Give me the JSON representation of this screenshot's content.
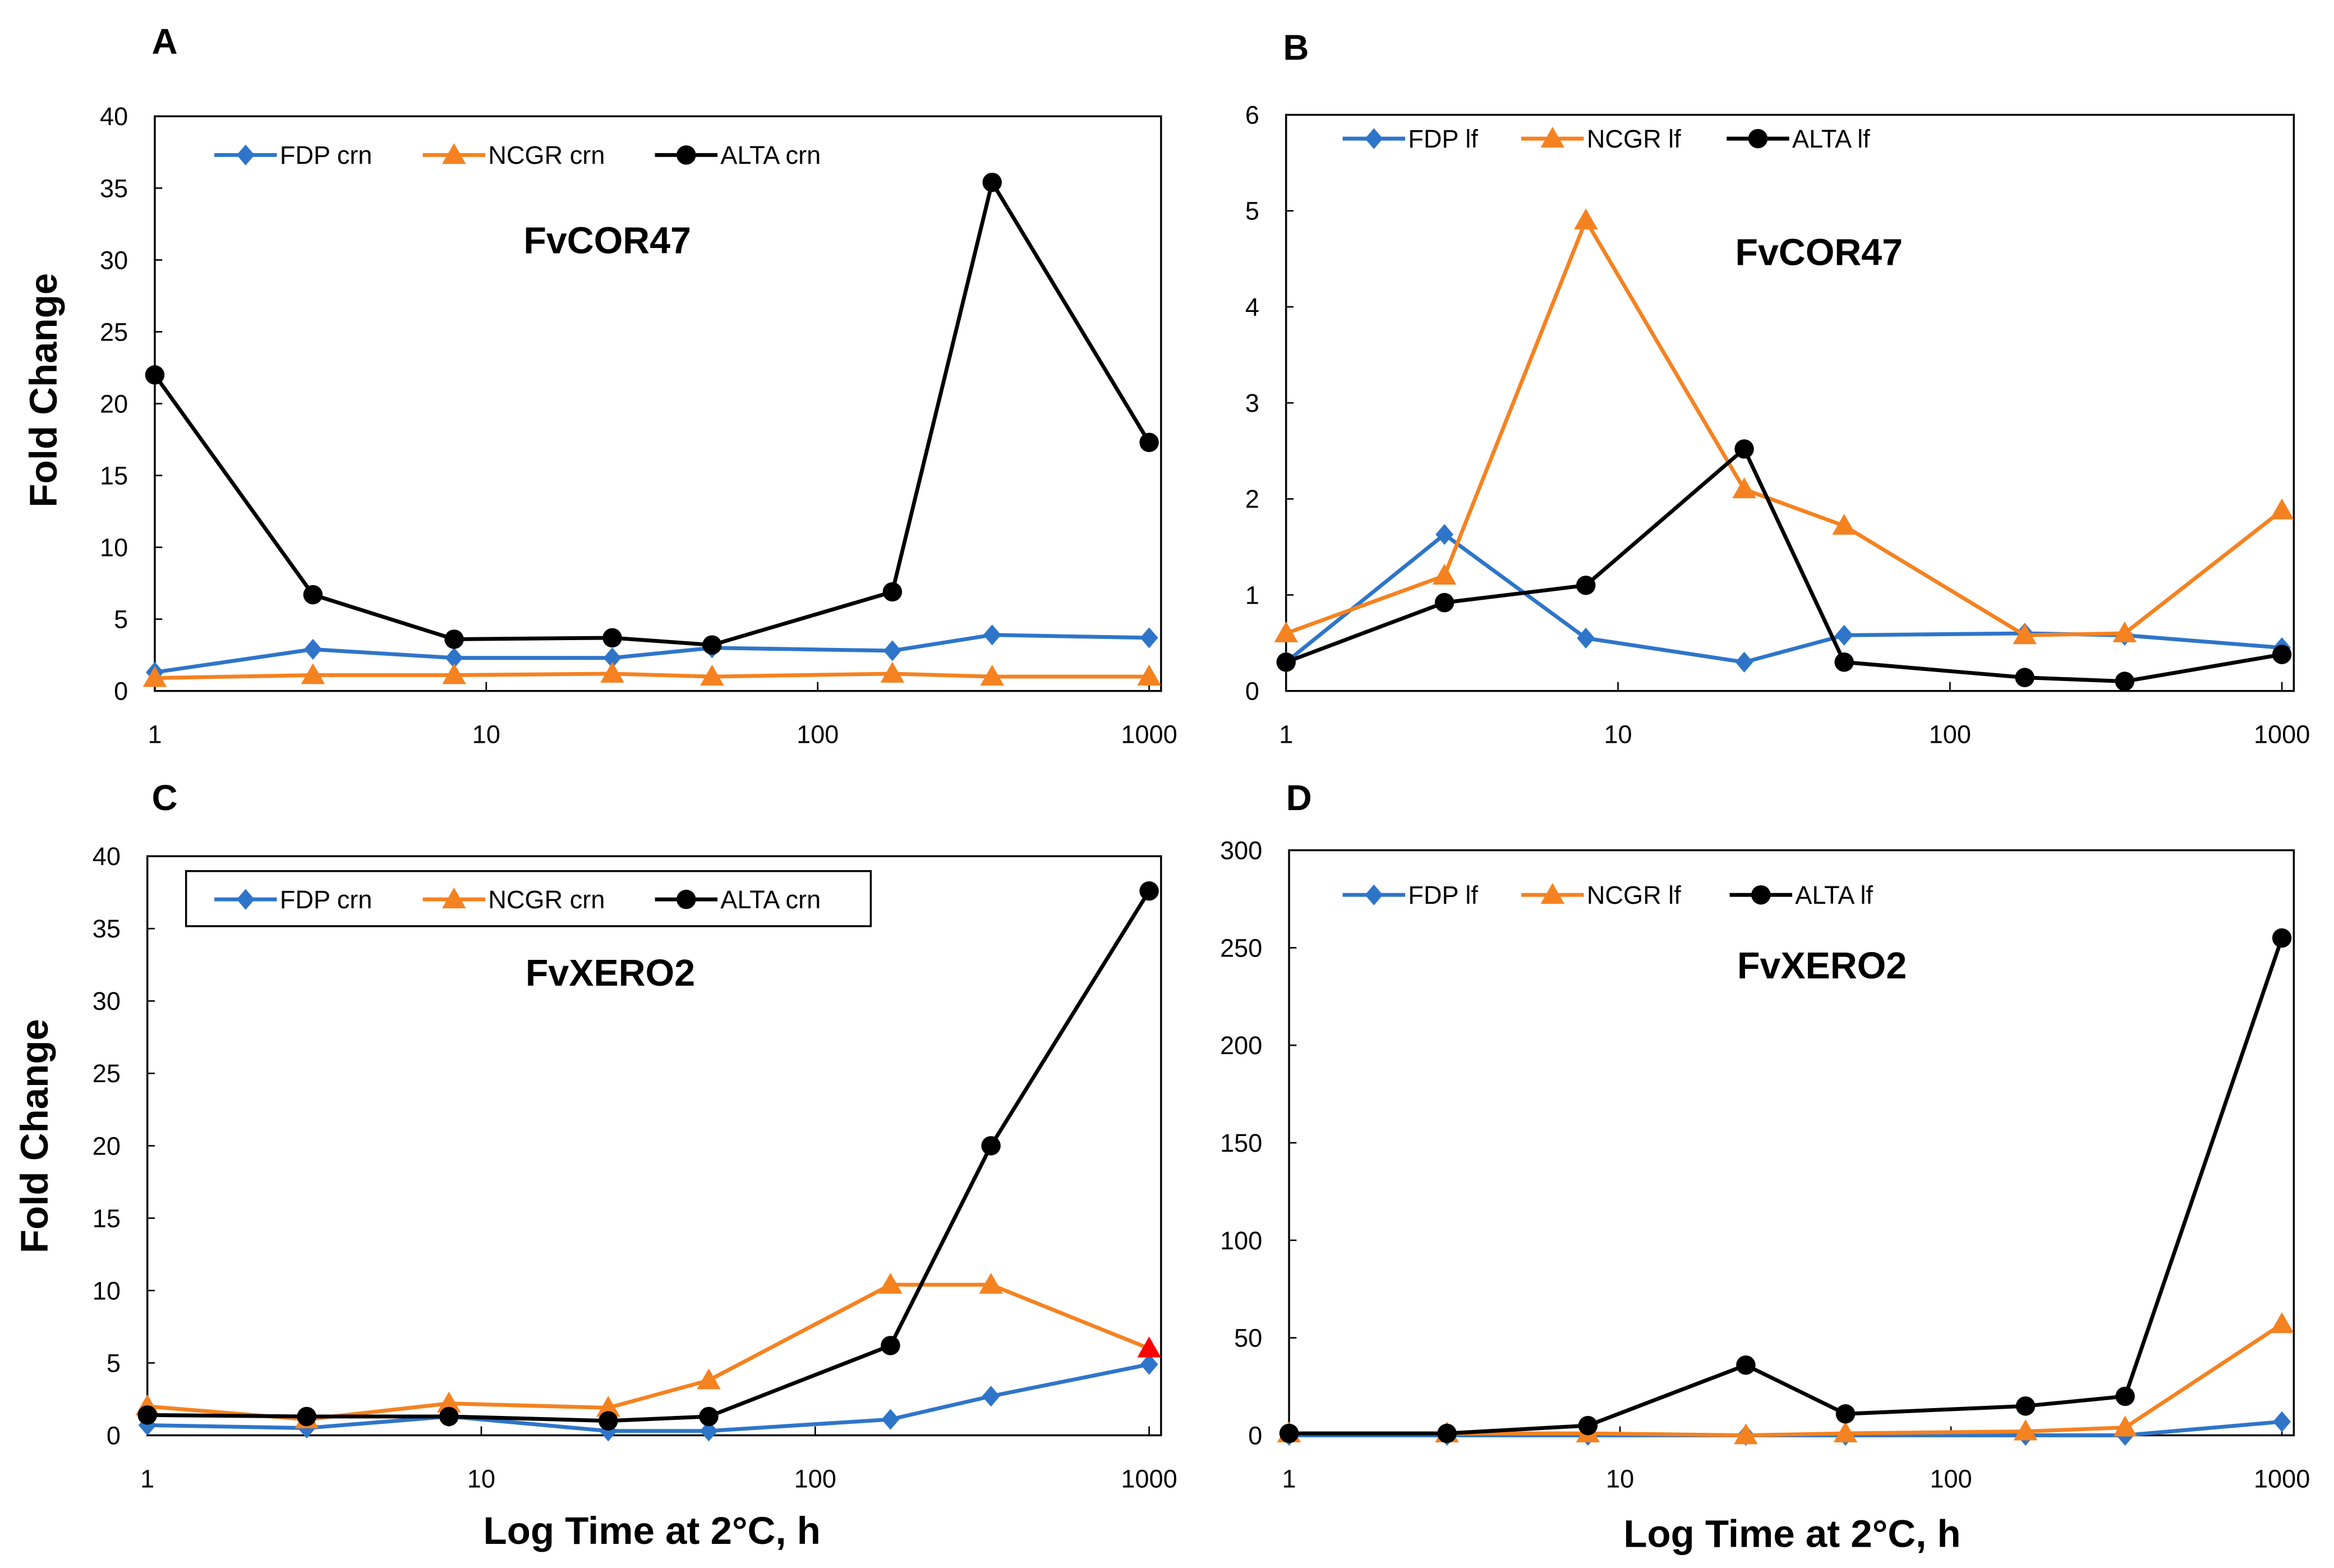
{
  "colors": {
    "FDP": "#2E75C9",
    "NCGR": "#F58220",
    "ALTA": "#000000",
    "highlight": "#FF0000"
  },
  "chart_data": [
    {
      "panel": "A",
      "type": "line",
      "title": "FvCOR47",
      "xscale": "log",
      "xlabel": "",
      "ylabel": "Fold Change",
      "xlim": [
        1,
        1000
      ],
      "ylim": [
        0,
        40
      ],
      "xticks": [
        "1",
        "10",
        "100",
        "1000"
      ],
      "yticks": [
        "0",
        "5",
        "10",
        "15",
        "20",
        "25",
        "30",
        "35",
        "40"
      ],
      "x": [
        1,
        3,
        8,
        24,
        48,
        168,
        336,
        1000
      ],
      "legend": "top",
      "legend_box": false,
      "series": [
        {
          "name": "FDP crn",
          "key": "FDP",
          "marker": "diamond",
          "values": [
            1.3,
            2.9,
            2.3,
            2.3,
            3.0,
            2.8,
            3.9,
            3.7
          ]
        },
        {
          "name": "NCGR crn",
          "key": "NCGR",
          "marker": "triangle",
          "values": [
            0.9,
            1.1,
            1.1,
            1.2,
            1.0,
            1.2,
            1.0,
            1.0
          ]
        },
        {
          "name": "ALTA crn",
          "key": "ALTA",
          "marker": "circle",
          "values": [
            22.0,
            6.7,
            3.6,
            3.7,
            3.2,
            6.9,
            35.4,
            17.3
          ]
        }
      ]
    },
    {
      "panel": "B",
      "type": "line",
      "title": "FvCOR47",
      "xscale": "log",
      "xlabel": "",
      "ylabel": "",
      "xlim": [
        1,
        1000
      ],
      "ylim": [
        0,
        6
      ],
      "xticks": [
        "1",
        "10",
        "100",
        "1000"
      ],
      "yticks": [
        "0",
        "1",
        "2",
        "3",
        "4",
        "5",
        "6"
      ],
      "x": [
        1,
        3,
        8,
        24,
        48,
        168,
        336,
        1000
      ],
      "legend": "top",
      "legend_box": false,
      "series": [
        {
          "name": "FDP lf",
          "key": "FDP",
          "marker": "diamond",
          "values": [
            0.3,
            1.63,
            0.55,
            0.3,
            0.58,
            0.6,
            0.58,
            0.45
          ]
        },
        {
          "name": "NCGR lf",
          "key": "NCGR",
          "marker": "triangle",
          "values": [
            0.6,
            1.2,
            4.9,
            2.1,
            1.72,
            0.58,
            0.6,
            1.88
          ]
        },
        {
          "name": "ALTA lf",
          "key": "ALTA",
          "marker": "circle",
          "values": [
            0.3,
            0.92,
            1.1,
            2.52,
            0.3,
            0.14,
            0.1,
            0.38
          ]
        }
      ]
    },
    {
      "panel": "C",
      "type": "line",
      "title": "FvXERO2",
      "xscale": "log",
      "xlabel": "Log Time at 2°C, h",
      "ylabel": "Fold Change",
      "xlim": [
        1,
        1000
      ],
      "ylim": [
        0,
        40
      ],
      "xticks": [
        "1",
        "10",
        "100",
        "1000"
      ],
      "yticks": [
        "0",
        "5",
        "10",
        "15",
        "20",
        "25",
        "30",
        "35",
        "40"
      ],
      "x": [
        1,
        3,
        8,
        24,
        48,
        168,
        336,
        1000
      ],
      "legend": "top",
      "legend_box": true,
      "series": [
        {
          "name": "FDP crn",
          "key": "FDP",
          "marker": "diamond",
          "values": [
            0.7,
            0.5,
            1.3,
            0.3,
            0.3,
            1.1,
            2.7,
            4.9
          ]
        },
        {
          "name": "NCGR crn",
          "key": "NCGR",
          "marker": "triangle",
          "values": [
            2.0,
            1.1,
            2.2,
            1.9,
            3.8,
            10.4,
            10.4,
            6.0
          ]
        },
        {
          "name": "ALTA crn",
          "key": "ALTA",
          "marker": "circle",
          "values": [
            1.4,
            1.3,
            1.3,
            1.0,
            1.3,
            6.2,
            20.0,
            37.6
          ]
        }
      ]
    },
    {
      "panel": "D",
      "type": "line",
      "title": "FvXERO2",
      "xscale": "log",
      "xlabel": "Log Time at 2°C, h",
      "ylabel": "",
      "xlim": [
        1,
        1000
      ],
      "ylim": [
        0,
        300
      ],
      "xticks": [
        "1",
        "10",
        "100",
        "1000"
      ],
      "yticks": [
        "0",
        "50",
        "100",
        "150",
        "200",
        "250",
        "300"
      ],
      "x": [
        1,
        3,
        8,
        24,
        48,
        168,
        336,
        1000
      ],
      "legend": "top",
      "legend_box": false,
      "series": [
        {
          "name": "FDP lf",
          "key": "FDP",
          "marker": "diamond",
          "values": [
            0,
            0,
            0,
            0,
            0,
            0,
            0,
            7
          ]
        },
        {
          "name": "NCGR lf",
          "key": "NCGR",
          "marker": "triangle",
          "values": [
            1,
            1,
            1,
            0,
            1,
            2,
            4,
            57
          ]
        },
        {
          "name": "ALTA lf",
          "key": "ALTA",
          "marker": "circle",
          "values": [
            1,
            1,
            5,
            36,
            11,
            15,
            20,
            255
          ]
        }
      ]
    }
  ]
}
